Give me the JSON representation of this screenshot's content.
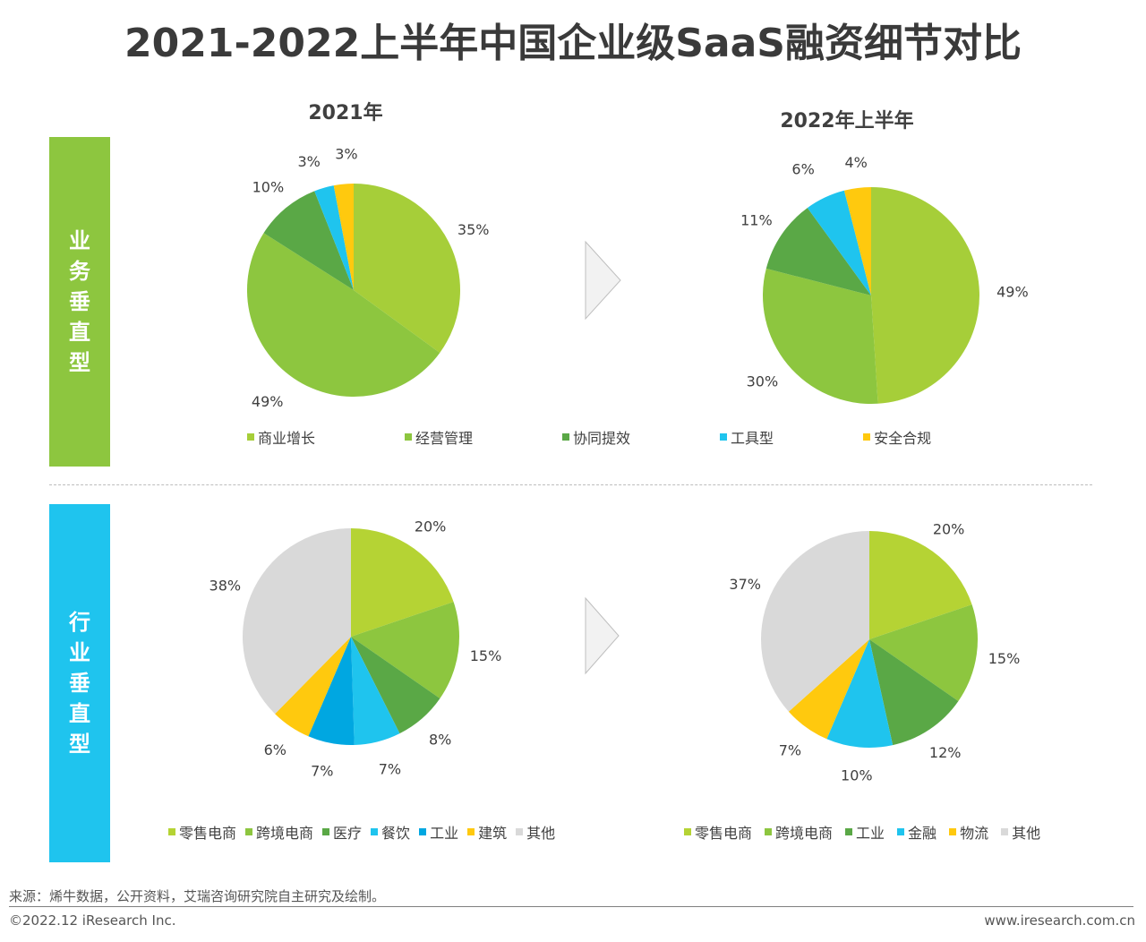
{
  "title": "2021-2022上半年中国企业级SaaS融资细节对比",
  "bands": {
    "business": [
      "业",
      "务",
      "垂",
      "直",
      "型"
    ],
    "industry": [
      "行",
      "业",
      "垂",
      "直",
      "型"
    ]
  },
  "years": {
    "left": "2021年",
    "right": "2022年上半年"
  },
  "source": "来源：烯牛数据，公开资料，艾瑞咨询研究院自主研究及绘制。",
  "copyright": "©2022.12 iResearch Inc.",
  "website": "www.iresearch.com.cn",
  "legend_business": [
    {
      "label": "商业增长",
      "color": "#a6ce39"
    },
    {
      "label": "经营管理",
      "color": "#8dc63f"
    },
    {
      "label": "协同提效",
      "color": "#5aa846"
    },
    {
      "label": "工具型",
      "color": "#1fc4ee"
    },
    {
      "label": "安全合规",
      "color": "#ffc90e"
    }
  ],
  "legend_industry_2021": [
    {
      "label": "零售电商",
      "color": "#b5d334"
    },
    {
      "label": "跨境电商",
      "color": "#8dc63f"
    },
    {
      "label": "医疗",
      "color": "#5aa846"
    },
    {
      "label": "餐饮",
      "color": "#1fc4ee"
    },
    {
      "label": "工业",
      "color": "#00a7e1"
    },
    {
      "label": "建筑",
      "color": "#ffc90e"
    },
    {
      "label": "其他",
      "color": "#d9d9d9"
    }
  ],
  "legend_industry_2022": [
    {
      "label": "零售电商",
      "color": "#b5d334"
    },
    {
      "label": "跨境电商",
      "color": "#8dc63f"
    },
    {
      "label": "工业",
      "color": "#5aa846"
    },
    {
      "label": "金融",
      "color": "#1fc4ee"
    },
    {
      "label": "物流",
      "color": "#ffc90e"
    },
    {
      "label": "其他",
      "color": "#d9d9d9"
    }
  ],
  "chart_data": [
    {
      "type": "pie",
      "title": "业务垂直型 2021年",
      "categories": [
        "商业增长",
        "经营管理",
        "协同提效",
        "工具型",
        "安全合规"
      ],
      "values": [
        35,
        49,
        10,
        3,
        3
      ],
      "labels": [
        "35%",
        "49%",
        "10%",
        "3%",
        "3%"
      ],
      "colors": [
        "#a6ce39",
        "#8dc63f",
        "#5aa846",
        "#1fc4ee",
        "#ffc90e"
      ]
    },
    {
      "type": "pie",
      "title": "业务垂直型 2022年上半年",
      "categories": [
        "商业增长",
        "经营管理",
        "协同提效",
        "工具型",
        "安全合规"
      ],
      "values": [
        49,
        30,
        11,
        6,
        4
      ],
      "labels": [
        "49%",
        "30%",
        "11%",
        "6%",
        "4%"
      ],
      "colors": [
        "#a6ce39",
        "#8dc63f",
        "#5aa846",
        "#1fc4ee",
        "#ffc90e"
      ]
    },
    {
      "type": "pie",
      "title": "行业垂直型 2021年",
      "categories": [
        "零售电商",
        "跨境电商",
        "医疗",
        "餐饮",
        "工业",
        "建筑",
        "其他"
      ],
      "values": [
        20,
        15,
        8,
        7,
        7,
        6,
        38
      ],
      "labels": [
        "20%",
        "15%",
        "8%",
        "7%",
        "7%",
        "6%",
        "38%"
      ],
      "colors": [
        "#b5d334",
        "#8dc63f",
        "#5aa846",
        "#1fc4ee",
        "#00a7e1",
        "#ffc90e",
        "#d9d9d9"
      ]
    },
    {
      "type": "pie",
      "title": "行业垂直型 2022年上半年",
      "categories": [
        "零售电商",
        "跨境电商",
        "工业",
        "金融",
        "物流",
        "其他"
      ],
      "values": [
        20,
        15,
        12,
        10,
        7,
        37
      ],
      "labels": [
        "20%",
        "15%",
        "12%",
        "10%",
        "7%",
        "37%"
      ],
      "colors": [
        "#b5d334",
        "#8dc63f",
        "#5aa846",
        "#1fc4ee",
        "#ffc90e",
        "#d9d9d9"
      ]
    }
  ]
}
